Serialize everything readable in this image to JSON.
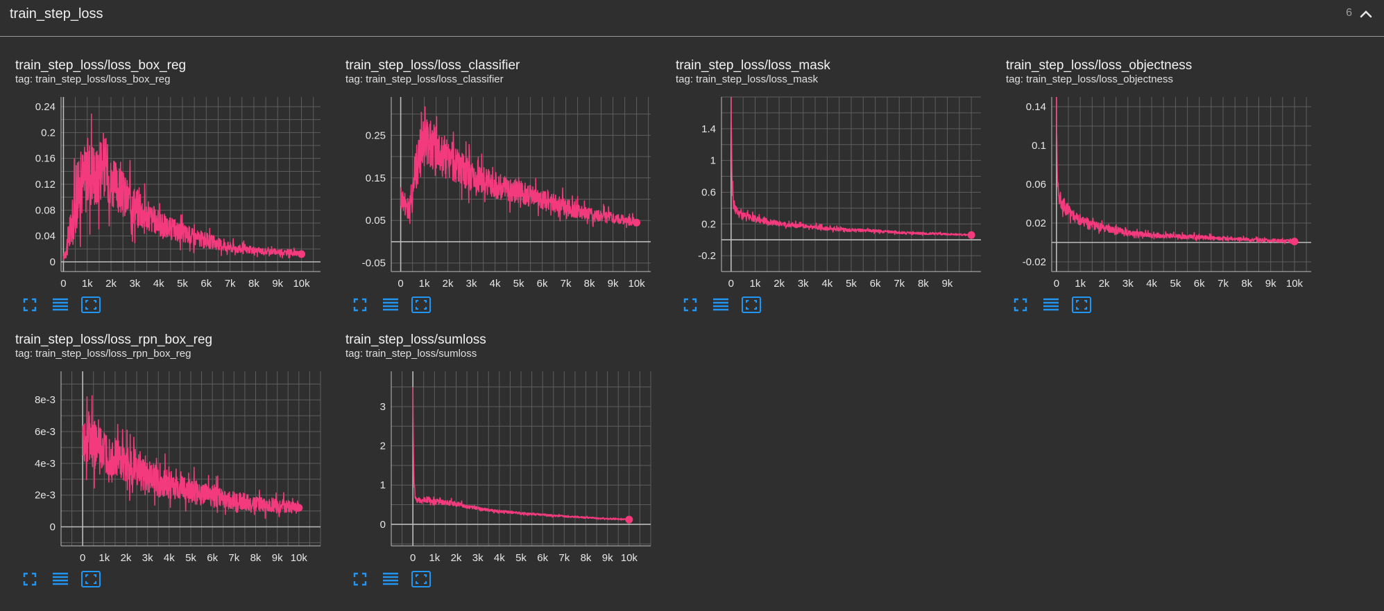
{
  "section": {
    "title": "train_step_loss",
    "count": "6"
  },
  "icons": {
    "fullscreen": "fullscreen-icon",
    "data_table": "list-icon",
    "fit_domain": "fit-domain-icon",
    "collapse": "chevron-up-icon"
  },
  "colors": {
    "line": "#f23a7c",
    "grid": "#5e5e5e",
    "axis": "#bdbdbd",
    "icon": "#2196f3"
  },
  "cards": [
    {
      "title": "train_step_loss/loss_box_reg",
      "tag": "tag: train_step_loss/loss_box_reg"
    },
    {
      "title": "train_step_loss/loss_classifier",
      "tag": "tag: train_step_loss/loss_classifier"
    },
    {
      "title": "train_step_loss/loss_mask",
      "tag": "tag: train_step_loss/loss_mask"
    },
    {
      "title": "train_step_loss/loss_objectness",
      "tag": "tag: train_step_loss/loss_objectness"
    },
    {
      "title": "train_step_loss/loss_rpn_box_reg",
      "tag": "tag: train_step_loss/loss_rpn_box_reg"
    },
    {
      "title": "train_step_loss/sumloss",
      "tag": "tag: train_step_loss/sumloss"
    }
  ],
  "chart_data": [
    {
      "type": "line",
      "xlim": [
        -100,
        10800
      ],
      "ylim": [
        -0.015,
        0.255
      ],
      "xticks": [
        0,
        1000,
        2000,
        3000,
        4000,
        5000,
        6000,
        7000,
        8000,
        9000,
        10000
      ],
      "xtick_labels": [
        "0",
        "1k",
        "2k",
        "3k",
        "4k",
        "5k",
        "6k",
        "7k",
        "8k",
        "9k",
        "10k"
      ],
      "yticks": [
        0,
        0.04,
        0.08,
        0.12,
        0.16,
        0.2,
        0.24
      ],
      "ytick_labels": [
        "0",
        "0.04",
        "0.08",
        "0.12",
        "0.16",
        "0.2",
        "0.24"
      ],
      "x": [
        0,
        200,
        400,
        600,
        800,
        1000,
        1200,
        1400,
        1600,
        1800,
        2000,
        2500,
        3000,
        3500,
        4000,
        4500,
        5000,
        5500,
        6000,
        6500,
        7000,
        7500,
        8000,
        8500,
        9000,
        9500,
        10000
      ],
      "y": [
        0.005,
        0.03,
        0.06,
        0.1,
        0.12,
        0.13,
        0.14,
        0.125,
        0.15,
        0.14,
        0.12,
        0.1,
        0.085,
        0.07,
        0.058,
        0.05,
        0.043,
        0.037,
        0.032,
        0.027,
        0.022,
        0.019,
        0.017,
        0.016,
        0.015,
        0.014,
        0.012
      ],
      "noise": [
        0.005,
        0.03,
        0.05,
        0.06,
        0.07,
        0.07,
        0.07,
        0.06,
        0.07,
        0.06,
        0.05,
        0.045,
        0.04,
        0.03,
        0.025,
        0.022,
        0.02,
        0.017,
        0.015,
        0.012,
        0.01,
        0.008,
        0.007,
        0.006,
        0.006,
        0.006,
        0.004
      ]
    },
    {
      "type": "line",
      "xlim": [
        -400,
        10600
      ],
      "ylim": [
        -0.07,
        0.34
      ],
      "xticks": [
        0,
        1000,
        2000,
        3000,
        4000,
        5000,
        6000,
        7000,
        8000,
        9000,
        10000
      ],
      "xtick_labels": [
        "0",
        "1k",
        "2k",
        "3k",
        "4k",
        "5k",
        "6k",
        "7k",
        "8k",
        "9k",
        "10k"
      ],
      "yticks": [
        -0.05,
        0.05,
        0.15,
        0.25
      ],
      "ytick_labels": [
        "-0.05",
        "0.05",
        "0.15",
        "0.25"
      ],
      "x": [
        0,
        200,
        400,
        600,
        800,
        1000,
        1200,
        1500,
        2000,
        2500,
        3000,
        3500,
        4000,
        4500,
        5000,
        5500,
        6000,
        6500,
        7000,
        7500,
        8000,
        8500,
        9000,
        9500,
        10000
      ],
      "y": [
        0.1,
        0.09,
        0.07,
        0.16,
        0.2,
        0.22,
        0.23,
        0.21,
        0.19,
        0.17,
        0.15,
        0.14,
        0.13,
        0.12,
        0.115,
        0.105,
        0.095,
        0.09,
        0.08,
        0.07,
        0.065,
        0.06,
        0.055,
        0.05,
        0.045
      ],
      "noise": [
        0.03,
        0.04,
        0.05,
        0.07,
        0.08,
        0.08,
        0.08,
        0.07,
        0.06,
        0.05,
        0.045,
        0.04,
        0.04,
        0.035,
        0.035,
        0.032,
        0.03,
        0.028,
        0.025,
        0.022,
        0.02,
        0.018,
        0.016,
        0.014,
        0.012
      ]
    },
    {
      "type": "line",
      "xlim": [
        -400,
        10400
      ],
      "ylim": [
        -0.4,
        1.8
      ],
      "xticks": [
        0,
        1000,
        2000,
        3000,
        4000,
        5000,
        6000,
        7000,
        8000,
        9000
      ],
      "xtick_labels": [
        "0",
        "1k",
        "2k",
        "3k",
        "4k",
        "5k",
        "6k",
        "7k",
        "8k",
        "9k"
      ],
      "yticks": [
        -0.2,
        0.2,
        0.6,
        1,
        1.4
      ],
      "ytick_labels": [
        "-0.2",
        "0.2",
        "0.6",
        "1",
        "1.4"
      ],
      "x": [
        0,
        20,
        50,
        100,
        200,
        300,
        500,
        800,
        1200,
        1600,
        2000,
        3000,
        4000,
        5000,
        6000,
        7000,
        8000,
        9000,
        10000
      ],
      "y": [
        1.8,
        1.2,
        0.6,
        0.45,
        0.38,
        0.33,
        0.3,
        0.27,
        0.25,
        0.22,
        0.2,
        0.17,
        0.14,
        0.12,
        0.11,
        0.09,
        0.08,
        0.07,
        0.06
      ],
      "noise": [
        0,
        0.1,
        0.12,
        0.1,
        0.08,
        0.07,
        0.06,
        0.05,
        0.05,
        0.045,
        0.04,
        0.035,
        0.03,
        0.025,
        0.022,
        0.02,
        0.018,
        0.016,
        0.014
      ]
    },
    {
      "type": "line",
      "xlim": [
        -200,
        10700
      ],
      "ylim": [
        -0.03,
        0.15
      ],
      "xticks": [
        0,
        1000,
        2000,
        3000,
        4000,
        5000,
        6000,
        7000,
        8000,
        9000,
        10000
      ],
      "xtick_labels": [
        "0",
        "1k",
        "2k",
        "3k",
        "4k",
        "5k",
        "6k",
        "7k",
        "8k",
        "9k",
        "10k"
      ],
      "yticks": [
        -0.02,
        0.02,
        0.06,
        0.1,
        0.14
      ],
      "ytick_labels": [
        "-0.02",
        "0.02",
        "0.06",
        "0.1",
        "0.14"
      ],
      "x": [
        0,
        20,
        50,
        100,
        200,
        400,
        600,
        1000,
        1500,
        2000,
        2500,
        3000,
        4000,
        5000,
        6000,
        7000,
        8000,
        9000,
        10000
      ],
      "y": [
        0.15,
        0.09,
        0.06,
        0.048,
        0.042,
        0.035,
        0.03,
        0.022,
        0.017,
        0.014,
        0.012,
        0.01,
        0.007,
        0.006,
        0.005,
        0.004,
        0.003,
        0.002,
        0.001
      ],
      "noise": [
        0,
        0.01,
        0.012,
        0.01,
        0.01,
        0.009,
        0.008,
        0.007,
        0.006,
        0.005,
        0.005,
        0.004,
        0.003,
        0.003,
        0.003,
        0.002,
        0.002,
        0.002,
        0.002
      ]
    },
    {
      "type": "line",
      "xlim": [
        -1000,
        11000
      ],
      "ylim": [
        -0.0012,
        0.0098
      ],
      "xticks": [
        0,
        1000,
        2000,
        3000,
        4000,
        5000,
        6000,
        7000,
        8000,
        9000,
        10000
      ],
      "xtick_labels": [
        "0",
        "1k",
        "2k",
        "3k",
        "4k",
        "5k",
        "6k",
        "7k",
        "8k",
        "9k",
        "10k"
      ],
      "yticks": [
        0,
        0.002,
        0.004,
        0.006,
        0.008
      ],
      "ytick_labels": [
        "0",
        "2e-3",
        "4e-3",
        "6e-3",
        "8e-3"
      ],
      "x": [
        0,
        200,
        400,
        600,
        800,
        1000,
        1500,
        2000,
        2500,
        3000,
        3500,
        4000,
        4500,
        5000,
        5500,
        6000,
        6500,
        7000,
        7500,
        8000,
        8500,
        9000,
        9500,
        10000
      ],
      "y": [
        0.005,
        0.0055,
        0.0052,
        0.0048,
        0.0047,
        0.0045,
        0.0042,
        0.0038,
        0.0034,
        0.0031,
        0.0028,
        0.0026,
        0.0024,
        0.0022,
        0.002,
        0.0019,
        0.0017,
        0.0016,
        0.0015,
        0.0014,
        0.0013,
        0.0013,
        0.0012,
        0.0012
      ],
      "noise": [
        0.0015,
        0.002,
        0.002,
        0.002,
        0.0018,
        0.0018,
        0.0016,
        0.0015,
        0.0014,
        0.0013,
        0.0012,
        0.0011,
        0.001,
        0.001,
        0.0009,
        0.0008,
        0.0008,
        0.0007,
        0.0007,
        0.0006,
        0.0006,
        0.0006,
        0.0005,
        0.0005
      ]
    },
    {
      "type": "line",
      "xlim": [
        -1000,
        11000
      ],
      "ylim": [
        -0.55,
        3.9
      ],
      "xticks": [
        0,
        1000,
        2000,
        3000,
        4000,
        5000,
        6000,
        7000,
        8000,
        9000,
        10000
      ],
      "xtick_labels": [
        "0",
        "1k",
        "2k",
        "3k",
        "4k",
        "5k",
        "6k",
        "7k",
        "8k",
        "9k",
        "10k"
      ],
      "yticks": [
        0,
        1,
        2,
        3
      ],
      "ytick_labels": [
        "0",
        "1",
        "2",
        "3"
      ],
      "x": [
        0,
        20,
        50,
        100,
        200,
        400,
        700,
        1000,
        1500,
        2000,
        2500,
        3000,
        3500,
        4000,
        5000,
        6000,
        7000,
        8000,
        9000,
        10000
      ],
      "y": [
        3.5,
        2.2,
        1.1,
        0.7,
        0.62,
        0.6,
        0.62,
        0.58,
        0.55,
        0.52,
        0.45,
        0.4,
        0.36,
        0.33,
        0.28,
        0.24,
        0.2,
        0.17,
        0.14,
        0.12
      ],
      "noise": [
        0,
        0.1,
        0.15,
        0.1,
        0.1,
        0.1,
        0.1,
        0.09,
        0.08,
        0.07,
        0.06,
        0.05,
        0.045,
        0.04,
        0.035,
        0.03,
        0.03,
        0.025,
        0.02,
        0.02
      ]
    }
  ]
}
